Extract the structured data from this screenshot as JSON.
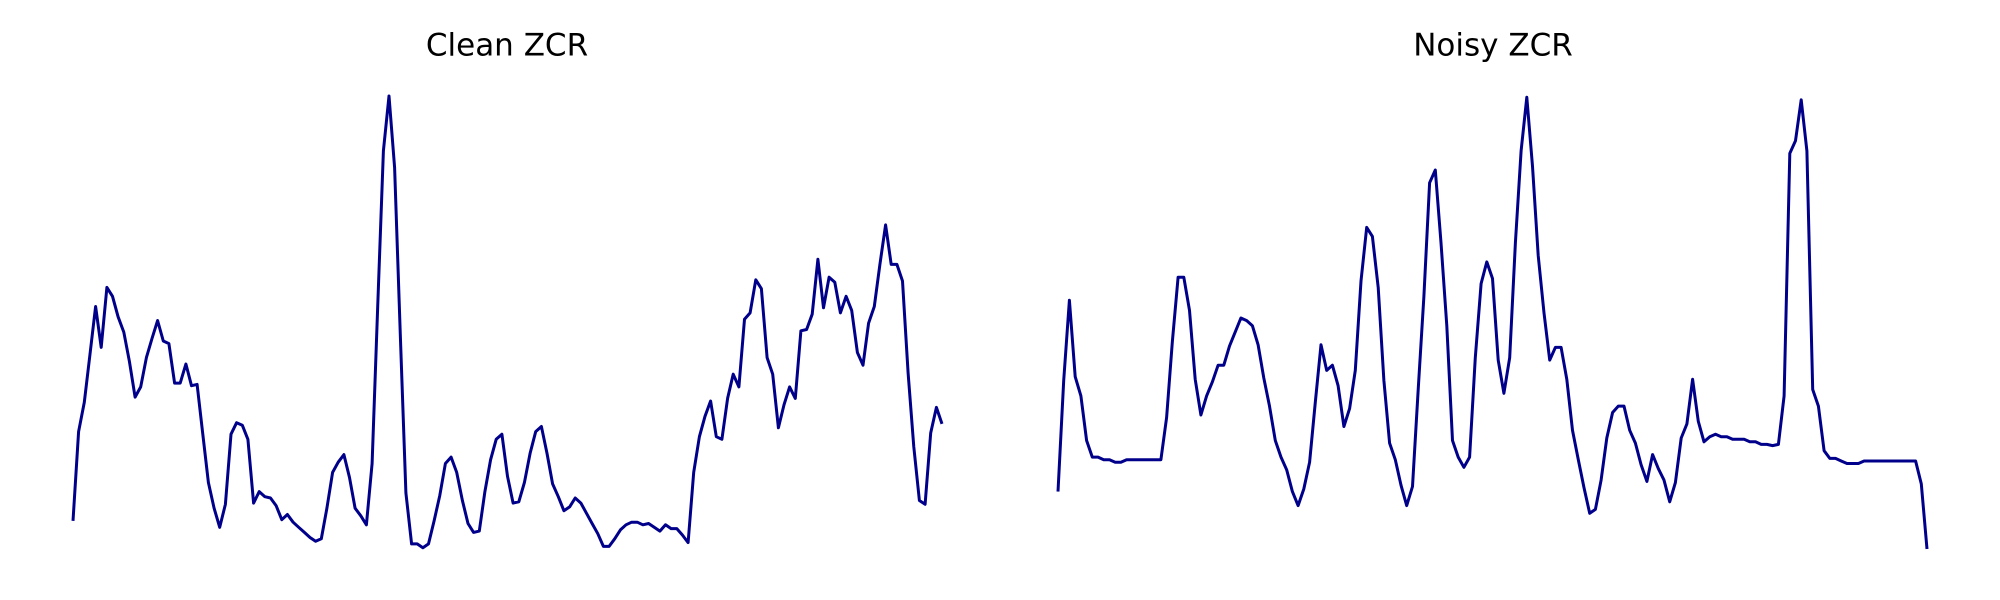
{
  "chart_data": [
    {
      "type": "line",
      "title": "Clean ZCR",
      "color": "#00008b",
      "values": [
        22,
        92,
        115,
        152,
        190,
        158,
        205,
        198,
        182,
        170,
        147,
        119,
        127,
        150,
        165,
        179,
        163,
        161,
        130,
        130,
        145,
        128,
        129,
        90,
        52,
        32,
        17,
        35,
        90,
        99,
        97,
        86,
        36,
        45,
        41,
        40,
        34,
        23,
        27,
        21,
        17,
        13,
        9,
        6,
        8,
        32,
        60,
        68,
        74,
        56,
        32,
        26,
        19,
        67,
        190,
        312,
        355,
        299,
        168,
        44,
        4,
        4,
        1,
        4,
        22,
        42,
        67,
        72,
        60,
        38,
        20,
        13,
        14,
        45,
        70,
        86,
        90,
        57,
        36,
        37,
        52,
        75,
        92,
        96,
        75,
        51,
        41,
        30,
        33,
        40,
        36,
        28,
        20,
        12,
        2,
        2,
        8,
        15,
        19,
        21,
        21,
        19,
        20,
        17,
        14,
        19,
        16,
        16,
        11,
        5,
        60,
        88,
        104,
        116,
        88,
        86,
        118,
        137,
        127,
        180,
        185,
        211,
        204,
        150,
        137,
        95,
        113,
        127,
        118,
        171,
        172,
        184,
        227,
        189,
        213,
        209,
        185,
        198,
        187,
        154,
        144,
        177,
        190,
        223,
        254,
        223,
        223,
        210,
        138,
        80,
        38,
        35,
        91,
        111,
        98
      ]
    },
    {
      "type": "line",
      "title": "Noisy ZCR",
      "color": "#00008b",
      "values": [
        45,
        132,
        195,
        135,
        120,
        85,
        72,
        72,
        70,
        70,
        68,
        68,
        70,
        70,
        70,
        70,
        70,
        70,
        70,
        103,
        162,
        213,
        213,
        187,
        133,
        105,
        120,
        131,
        144,
        144,
        159,
        170,
        181,
        179,
        175,
        160,
        134,
        112,
        85,
        72,
        62,
        45,
        34,
        47,
        68,
        115,
        160,
        140,
        144,
        128,
        96,
        110,
        140,
        210,
        252,
        245,
        205,
        132,
        83,
        70,
        50,
        34,
        49,
        125,
        198,
        287,
        297,
        240,
        175,
        85,
        72,
        64,
        72,
        150,
        208,
        225,
        212,
        148,
        122,
        150,
        240,
        312,
        354,
        300,
        230,
        185,
        148,
        158,
        158,
        133,
        93,
        70,
        48,
        28,
        31,
        54,
        87,
        107,
        112,
        112,
        93,
        83,
        66,
        53,
        74,
        63,
        54,
        37,
        52,
        87,
        98,
        133,
        100,
        84,
        88,
        90,
        88,
        88,
        86,
        86,
        86,
        84,
        84,
        82,
        82,
        81,
        82,
        120,
        310,
        320,
        352,
        312,
        125,
        112,
        77,
        71,
        71,
        69,
        67,
        67,
        67,
        69,
        69,
        69,
        69,
        69,
        69,
        69,
        69,
        69,
        69,
        51,
        0
      ]
    }
  ]
}
